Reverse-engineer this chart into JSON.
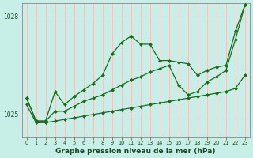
{
  "bg_color": "#c8eee8",
  "line_color": "#1a6b1a",
  "vgrid_color": "#ffbbbb",
  "hgrid_color": "#ffffff",
  "xlim": [
    -0.5,
    23.5
  ],
  "ylim": [
    1024.3,
    1028.4
  ],
  "ytick_vals": [
    1025,
    1028
  ],
  "xtick_vals": [
    0,
    1,
    2,
    3,
    4,
    5,
    6,
    7,
    8,
    9,
    10,
    11,
    12,
    13,
    14,
    15,
    16,
    17,
    18,
    19,
    20,
    21,
    22,
    23
  ],
  "xlabel": "Graphe pression niveau de la mer (hPa)",
  "s1y": [
    1025.5,
    1024.8,
    1024.8,
    1025.7,
    1025.3,
    1025.55,
    1025.75,
    1025.95,
    1026.2,
    1026.85,
    1027.2,
    1027.4,
    1027.15,
    1027.15,
    1026.65,
    1026.65,
    1026.6,
    1026.55,
    1026.2,
    1026.35,
    1026.45,
    1026.5,
    1027.55,
    1028.35
  ],
  "s2y": [
    1025.5,
    1024.8,
    1024.8,
    1025.1,
    1025.1,
    1025.25,
    1025.4,
    1025.5,
    1025.6,
    1025.75,
    1025.9,
    1026.05,
    1026.15,
    1026.3,
    1026.4,
    1026.5,
    1025.9,
    1025.6,
    1025.7,
    1026.0,
    1026.15,
    1026.35,
    1027.3,
    1028.35
  ],
  "s3y": [
    1025.3,
    1024.75,
    1024.75,
    1024.8,
    1024.85,
    1024.9,
    1024.95,
    1025.0,
    1025.05,
    1025.1,
    1025.15,
    1025.2,
    1025.25,
    1025.3,
    1025.35,
    1025.4,
    1025.45,
    1025.5,
    1025.55,
    1025.6,
    1025.65,
    1025.7,
    1025.8,
    1026.2
  ]
}
